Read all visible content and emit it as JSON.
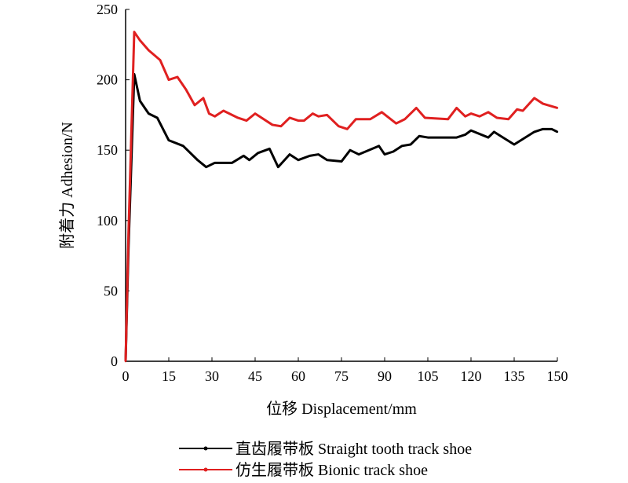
{
  "chart_data": {
    "type": "line",
    "title": "",
    "xlabel": "位移 Displacement/mm",
    "ylabel": "附着力 Adhesion/N",
    "xlim": [
      0,
      150
    ],
    "ylim": [
      0,
      250
    ],
    "xticks": [
      0,
      15,
      30,
      45,
      60,
      75,
      90,
      105,
      120,
      135,
      150
    ],
    "yticks": [
      0,
      50,
      100,
      150,
      200,
      250
    ],
    "grid": false,
    "legend_position": "bottom",
    "series": [
      {
        "name": "直齿履带板 Straight tooth track shoe",
        "color": "#000000",
        "x": [
          0,
          1,
          3,
          5,
          8,
          11,
          15,
          20,
          25,
          28,
          31,
          37,
          41,
          43,
          46,
          50,
          53,
          57,
          60,
          64,
          67,
          70,
          75,
          78,
          81,
          88,
          90,
          93,
          96,
          99,
          102,
          105,
          115,
          118,
          120,
          126,
          128,
          135,
          142,
          145,
          148,
          150
        ],
        "y": [
          0,
          80,
          204,
          185,
          176,
          173,
          157,
          153,
          143,
          138,
          141,
          141,
          146,
          143,
          148,
          151,
          138,
          147,
          143,
          146,
          147,
          143,
          142,
          150,
          147,
          153,
          147,
          149,
          153,
          154,
          160,
          159,
          159,
          161,
          164,
          159,
          163,
          154,
          163,
          165,
          165,
          163
        ]
      },
      {
        "name": "仿生履带板 Bionic track shoe",
        "color": "#e02020",
        "x": [
          0,
          1,
          3,
          5,
          8,
          12,
          15,
          18,
          21,
          24,
          27,
          29,
          31,
          34,
          39,
          42,
          45,
          51,
          54,
          57,
          60,
          62,
          65,
          67,
          70,
          74,
          77,
          80,
          85,
          89,
          94,
          97,
          101,
          104,
          112,
          115,
          118,
          120,
          123,
          126,
          129,
          133,
          136,
          138,
          142,
          145,
          150
        ],
        "y": [
          0,
          90,
          234,
          228,
          221,
          214,
          200,
          202,
          193,
          182,
          187,
          176,
          174,
          178,
          173,
          171,
          176,
          168,
          167,
          173,
          171,
          171,
          176,
          174,
          175,
          167,
          165,
          172,
          172,
          177,
          169,
          172,
          180,
          173,
          172,
          180,
          174,
          176,
          174,
          177,
          173,
          172,
          179,
          178,
          187,
          183,
          180
        ]
      }
    ]
  }
}
